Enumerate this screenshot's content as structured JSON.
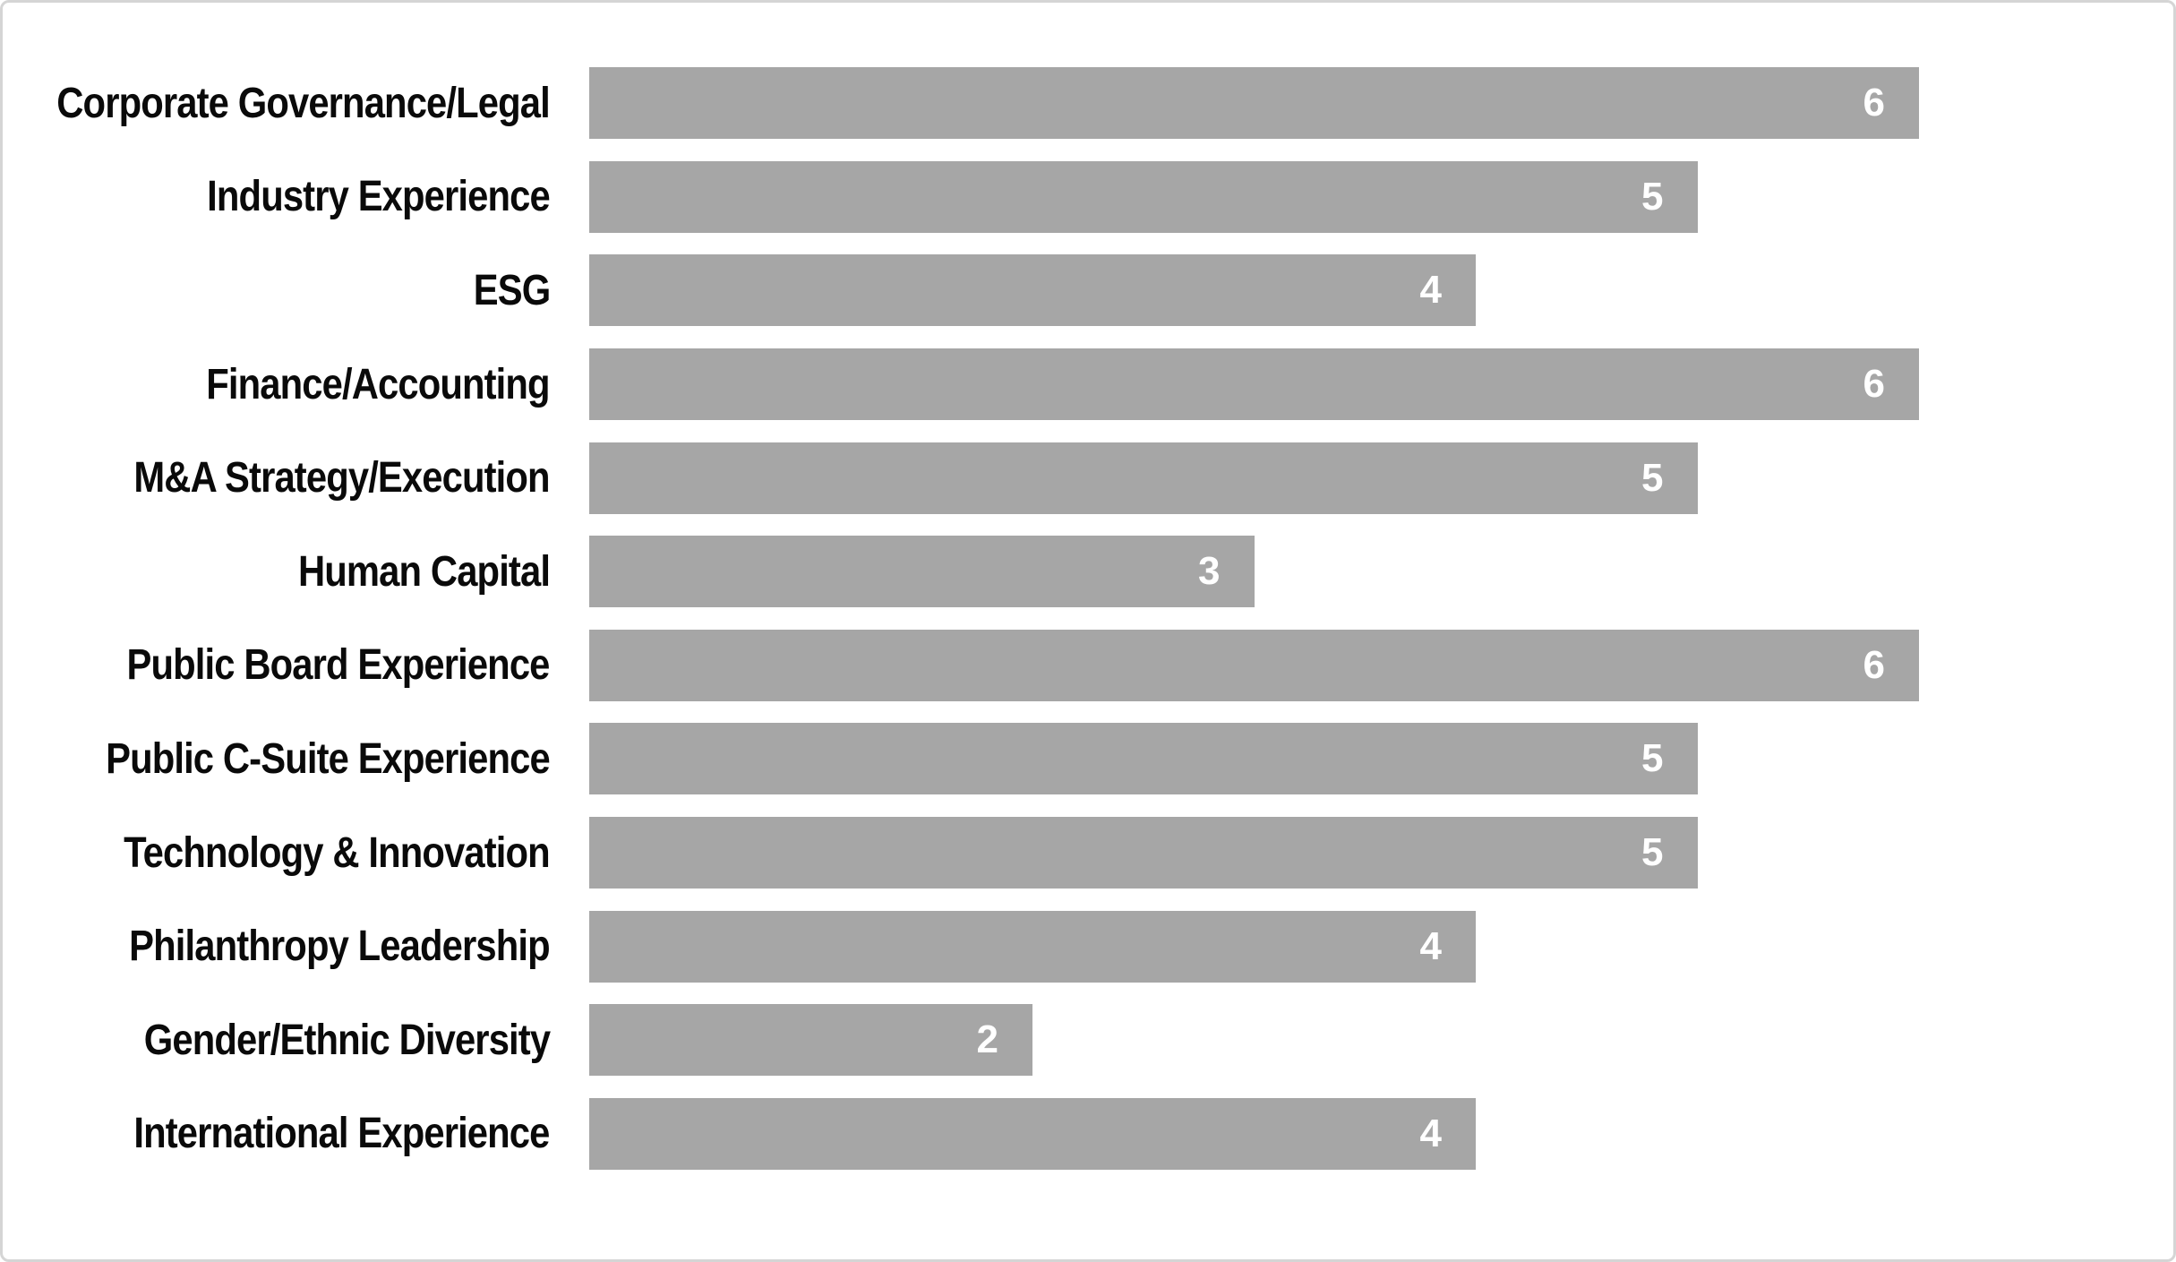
{
  "chart_data": {
    "type": "bar",
    "orientation": "horizontal",
    "title": "",
    "xlabel": "",
    "ylabel": "",
    "categories": [
      "Corporate Governance/Legal",
      "Industry Experience",
      "ESG",
      "Finance/Accounting",
      "M&A Strategy/Execution",
      "Human Capital",
      "Public Board Experience",
      "Public C-Suite Experience",
      "Technology & Innovation",
      "Philanthropy Leadership",
      "Gender/Ethnic Diversity",
      "International Experience"
    ],
    "values": [
      6,
      5,
      4,
      6,
      5,
      3,
      6,
      5,
      5,
      4,
      2,
      4
    ],
    "xlim": [
      0,
      6
    ],
    "grid": false,
    "legend": false,
    "data_labels_position": "inside-end",
    "bar_color": "#a6a6a6",
    "value_label_color": "#ffffff",
    "category_label_color": "#0a0a0a",
    "frame_border_color": "#d5d5d5",
    "background_color": "#ffffff"
  }
}
